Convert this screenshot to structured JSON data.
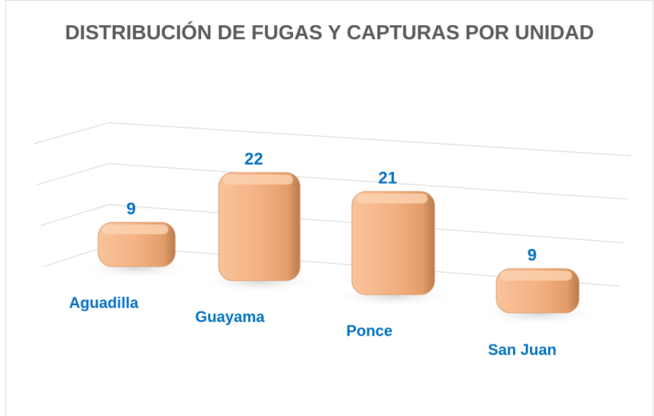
{
  "chart_data": {
    "type": "bar3d",
    "title": "DISTRIBUCIÓN DE FUGAS Y CAPTURAS POR UNIDAD",
    "categories": [
      "Aguadilla",
      "Guayama",
      "Ponce",
      "San Juan"
    ],
    "values": [
      9,
      22,
      21,
      9
    ],
    "color": "#f4b183",
    "ylim": [
      0,
      30
    ],
    "yticks": [
      0,
      10,
      20,
      30
    ],
    "grid": true
  }
}
